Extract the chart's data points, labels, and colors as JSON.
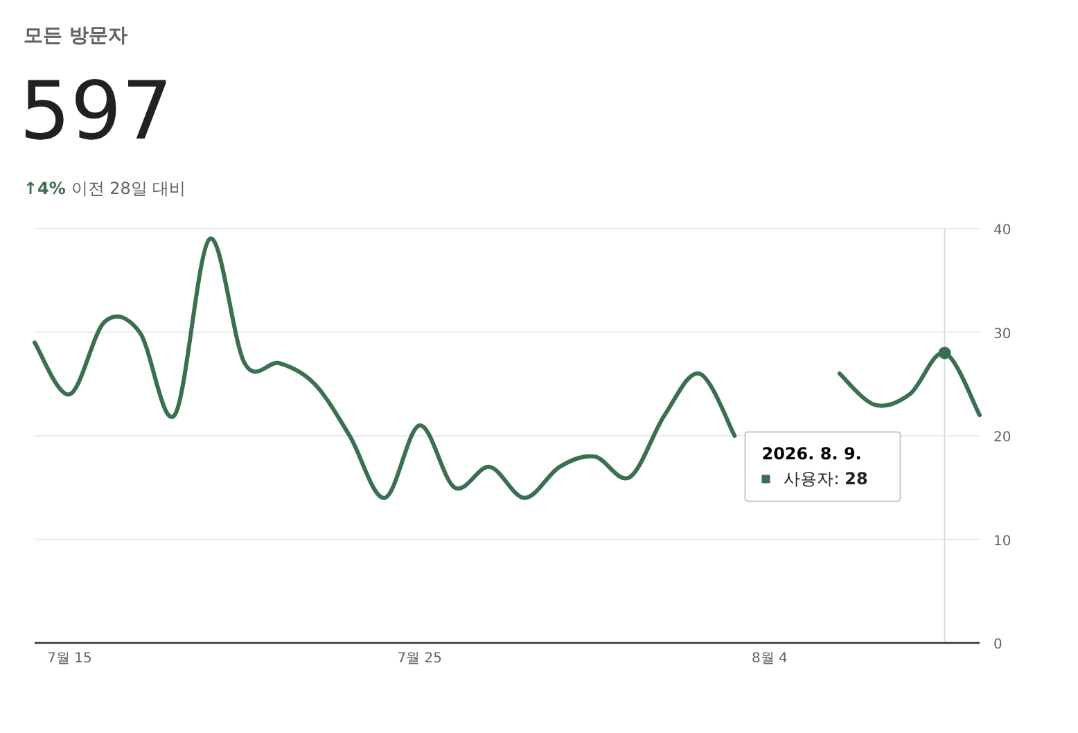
{
  "chart_data": {
    "type": "line",
    "title": "모든 방문자",
    "subtitle": "597",
    "annotations": [
      "**↑4%** 이전 28일 대비",
      "2026. 8. 9.",
      "사용자: **28**"
    ],
    "x": [
      "2026-07-14",
      "2026-07-15",
      "2026-07-16",
      "2026-07-17",
      "2026-07-18",
      "2026-07-19",
      "2026-07-20",
      "2026-07-21",
      "2026-07-22",
      "2026-07-23",
      "2026-07-24",
      "2026-07-25",
      "2026-07-26",
      "2026-07-27",
      "2026-07-28",
      "2026-07-29",
      "2026-07-30",
      "2026-07-31",
      "2026-08-01",
      "2026-08-02",
      "2026-08-03",
      "2026-08-04",
      "2026-08-05",
      "2026-08-06",
      "2026-08-07",
      "2026-08-08",
      "2026-08-09",
      "2026-08-10"
    ],
    "series": [
      {
        "color": "#3a7050",
        "values": [
          29,
          24,
          31,
          30,
          22,
          39,
          27,
          27,
          25,
          20,
          14,
          21,
          15,
          17,
          14,
          17,
          18,
          16,
          22,
          26,
          20,
          null,
          null,
          26,
          23,
          24,
          28,
          22
        ]
      }
    ],
    "xlim": [
      "2026-07-14",
      "2026-08-10"
    ],
    "xticks": [
      {
        "value": "2026-07-15",
        "label": "7월 15"
      },
      {
        "value": "2026-07-25",
        "label": "7월 25"
      },
      {
        "value": "2026-08-04",
        "label": "8월 4"
      }
    ],
    "ylim": [
      0,
      40
    ],
    "yticks": [
      0,
      10,
      20,
      30,
      40
    ],
    "grid": "y",
    "marker": "none",
    "line_style": "solid",
    "ref_lines": [
      {
        "axis": "x",
        "value": "2026-08-09",
        "color": "#dadce0"
      }
    ]
  }
}
